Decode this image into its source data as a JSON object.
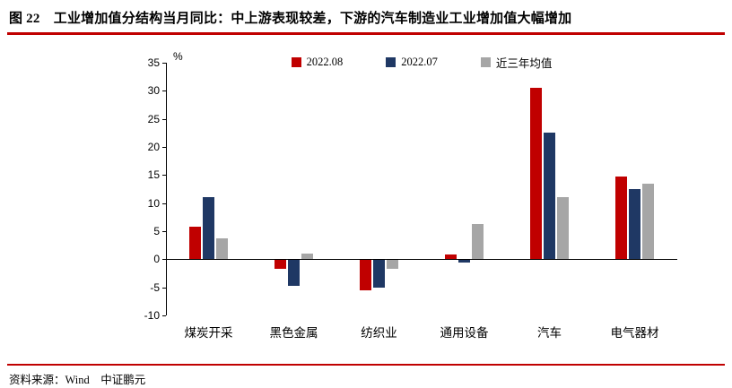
{
  "header": {
    "title": "图 22　工业增加值分结构当月同比：中上游表现较差，下游的汽车制造业工业增加值大幅增加"
  },
  "footer": {
    "source": "资料来源：Wind　中证鹏元"
  },
  "colors": {
    "accent_red": "#C00000",
    "series_red": "#C00000",
    "series_navy": "#1F3864",
    "series_gray": "#A6A6A6"
  },
  "chart_data": {
    "type": "bar",
    "title": "",
    "unit_label": "%",
    "categories": [
      "煤炭开采",
      "黑色金属",
      "纺织业",
      "通用设备",
      "汽车",
      "电气器材"
    ],
    "series": [
      {
        "name": "2022.08",
        "color": "#C00000",
        "values": [
          5.8,
          -1.5,
          -5.3,
          0.8,
          30.5,
          14.8
        ]
      },
      {
        "name": "2022.07",
        "color": "#1F3864",
        "values": [
          11.1,
          -4.5,
          -4.9,
          -0.4,
          22.6,
          12.5
        ]
      },
      {
        "name": "近三年均值",
        "color": "#A6A6A6",
        "values": [
          3.7,
          1.0,
          -1.5,
          6.2,
          11.0,
          13.4
        ]
      }
    ],
    "ylim": [
      -10,
      35
    ],
    "ytick_step": 5,
    "grid": false,
    "legend_position": "top"
  }
}
